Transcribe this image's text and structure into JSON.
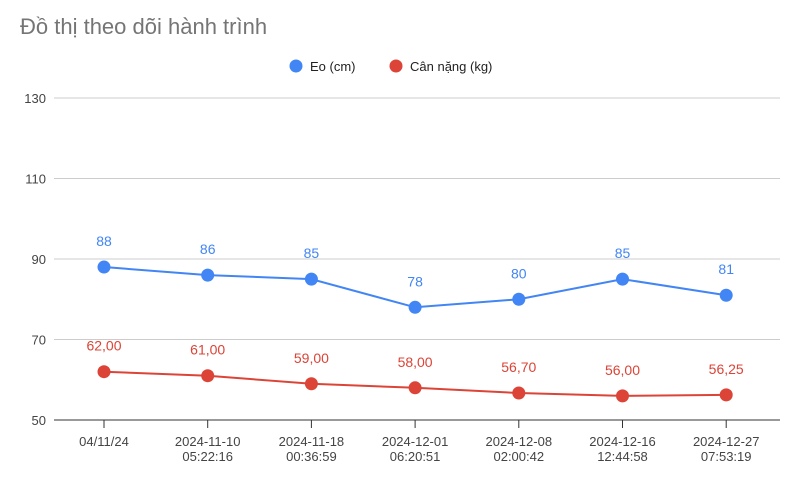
{
  "chart_data": {
    "type": "line",
    "title": "Đồ thị theo dõi hành trình",
    "categories": [
      [
        "04/11/24"
      ],
      [
        "2024-11-10",
        "05:22:16"
      ],
      [
        "2024-11-18",
        "00:36:59"
      ],
      [
        "2024-12-01",
        "06:20:51"
      ],
      [
        "2024-12-08",
        "02:00:42"
      ],
      [
        "2024-12-16",
        "12:44:58"
      ],
      [
        "2024-12-27",
        "07:53:19"
      ]
    ],
    "series": [
      {
        "name": "Eo (cm)",
        "color": "#4285f4",
        "values": [
          88,
          86,
          85,
          78,
          80,
          85,
          81
        ],
        "labels": [
          "88",
          "86",
          "85",
          "78",
          "80",
          "85",
          "81"
        ]
      },
      {
        "name": "Cân nặng (kg)",
        "color": "#db4437",
        "values": [
          62.0,
          61.0,
          59.0,
          58.0,
          56.7,
          56.0,
          56.25
        ],
        "labels": [
          "62,00",
          "61,00",
          "59,00",
          "58,00",
          "56,70",
          "56,00",
          "56,25"
        ]
      }
    ],
    "yticks": [
      "50",
      "70",
      "90",
      "110",
      "130"
    ],
    "ylim": [
      50,
      130
    ],
    "grid": true,
    "legend_position": "top-center",
    "xlabel": "",
    "ylabel": ""
  }
}
